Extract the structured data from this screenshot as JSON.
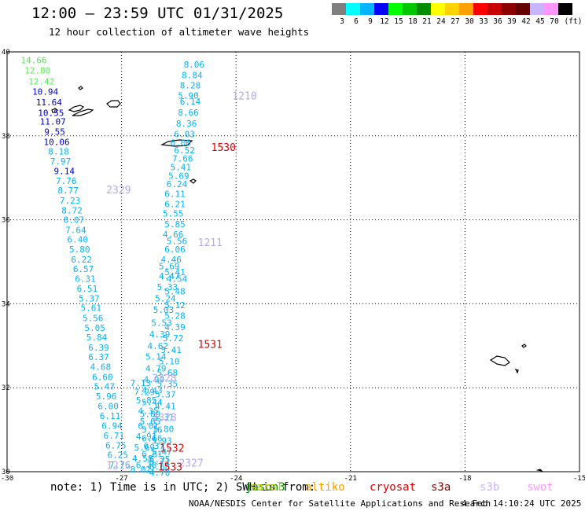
{
  "header": {
    "title": "12:00 – 23:59 UTC 01/31/2025",
    "subtitle": "12 hour collection of altimeter wave heights"
  },
  "colorbar": {
    "swatches": [
      {
        "color": "#7f7f7f",
        "label": "3"
      },
      {
        "color": "#00ffff",
        "label": "6"
      },
      {
        "color": "#00b4ff",
        "label": "9"
      },
      {
        "color": "#0000ff",
        "label": "12"
      },
      {
        "color": "#00ff00",
        "label": "15"
      },
      {
        "color": "#00c800",
        "label": "18"
      },
      {
        "color": "#008c00",
        "label": "21"
      },
      {
        "color": "#ffff00",
        "label": "24"
      },
      {
        "color": "#ffd200",
        "label": "27"
      },
      {
        "color": "#ffa000",
        "label": "30"
      },
      {
        "color": "#ff0000",
        "label": "33"
      },
      {
        "color": "#c80000",
        "label": "36"
      },
      {
        "color": "#8c0000",
        "label": "39"
      },
      {
        "color": "#640000",
        "label": "42"
      },
      {
        "color": "#c8b4ff",
        "label": "45"
      },
      {
        "color": "#ff96ff",
        "label": "70"
      },
      {
        "color": "#000000",
        "label": ""
      }
    ],
    "unit": "(ft)"
  },
  "axes": {
    "lat_labels": [
      "40",
      "38",
      "36",
      "34",
      "32",
      "30"
    ],
    "lon_labels": [
      "-30",
      "-27",
      "-24",
      "-21",
      "-18",
      "-15"
    ]
  },
  "map_data": {
    "lon_range": [
      -30,
      -15
    ],
    "lat_range": [
      30,
      40
    ],
    "swh_track_a": [
      {
        "lat": 39.8,
        "lon": -29.3,
        "v": "14.66",
        "c": "#55ee55"
      },
      {
        "lat": 39.56,
        "lon": -29.2,
        "v": "12.80",
        "c": "#55ee55"
      },
      {
        "lat": 39.3,
        "lon": -29.1,
        "v": "12.42",
        "c": "#55ee55"
      },
      {
        "lat": 39.05,
        "lon": -29.0,
        "v": "10.94",
        "c": "#0000cc"
      },
      {
        "lat": 38.8,
        "lon": -28.9,
        "v": "11.64",
        "c": "#0000cc"
      },
      {
        "lat": 38.55,
        "lon": -28.85,
        "v": "10.55",
        "c": "#0000cc"
      },
      {
        "lat": 38.34,
        "lon": -28.8,
        "v": "11.07",
        "c": "#0000cc"
      },
      {
        "lat": 38.1,
        "lon": -28.75,
        "v": "9.55",
        "c": "#0000cc"
      },
      {
        "lat": 37.86,
        "lon": -28.7,
        "v": "10.06",
        "c": "#0000cc"
      },
      {
        "lat": 37.63,
        "lon": -28.65,
        "v": "8.18",
        "c": "#00b4ff"
      },
      {
        "lat": 37.4,
        "lon": -28.6,
        "v": "7.97",
        "c": "#00b4ff"
      },
      {
        "lat": 37.16,
        "lon": -28.5,
        "v": "9.14",
        "c": "#0000cc"
      },
      {
        "lat": 36.93,
        "lon": -28.45,
        "v": "7.76",
        "c": "#00b4ff"
      },
      {
        "lat": 36.7,
        "lon": -28.4,
        "v": "8.77",
        "c": "#00b4ff"
      },
      {
        "lat": 36.46,
        "lon": -28.35,
        "v": "7.23",
        "c": "#00b4ff"
      },
      {
        "lat": 36.23,
        "lon": -28.3,
        "v": "8.72",
        "c": "#00b4ff"
      },
      {
        "lat": 36.0,
        "lon": -28.25,
        "v": "8.07",
        "c": "#00b4ff"
      },
      {
        "lat": 35.76,
        "lon": -28.2,
        "v": "7.64",
        "c": "#00b4ff"
      },
      {
        "lat": 35.53,
        "lon": -28.15,
        "v": "6.40",
        "c": "#00b4ff"
      },
      {
        "lat": 35.3,
        "lon": -28.1,
        "v": "5.80",
        "c": "#00b4ff"
      },
      {
        "lat": 35.06,
        "lon": -28.05,
        "v": "6.22",
        "c": "#00b4ff"
      },
      {
        "lat": 34.83,
        "lon": -28.0,
        "v": "6.57",
        "c": "#00b4ff"
      },
      {
        "lat": 34.6,
        "lon": -27.95,
        "v": "6.31",
        "c": "#00b4ff"
      },
      {
        "lat": 34.36,
        "lon": -27.9,
        "v": "6.51",
        "c": "#00b4ff"
      },
      {
        "lat": 34.13,
        "lon": -27.85,
        "v": "5.37",
        "c": "#00b4ff"
      },
      {
        "lat": 33.9,
        "lon": -27.8,
        "v": "5.61",
        "c": "#00b4ff"
      },
      {
        "lat": 33.66,
        "lon": -27.75,
        "v": "5.56",
        "c": "#00b4ff"
      },
      {
        "lat": 33.43,
        "lon": -27.7,
        "v": "5.05",
        "c": "#00b4ff"
      },
      {
        "lat": 33.2,
        "lon": -27.65,
        "v": "5.84",
        "c": "#00b4ff"
      },
      {
        "lat": 32.96,
        "lon": -27.6,
        "v": "6.39",
        "c": "#00b4ff"
      },
      {
        "lat": 32.73,
        "lon": -27.6,
        "v": "6.37",
        "c": "#00b4ff"
      },
      {
        "lat": 32.5,
        "lon": -27.55,
        "v": "4.68",
        "c": "#00b4ff"
      },
      {
        "lat": 32.26,
        "lon": -27.5,
        "v": "6.60",
        "c": "#00b4ff"
      },
      {
        "lat": 32.03,
        "lon": -27.45,
        "v": "5.47",
        "c": "#00b4ff"
      },
      {
        "lat": 31.8,
        "lon": -27.4,
        "v": "5.96",
        "c": "#00b4ff"
      },
      {
        "lat": 31.56,
        "lon": -27.35,
        "v": "6.00",
        "c": "#00b4ff"
      },
      {
        "lat": 31.33,
        "lon": -27.3,
        "v": "6.11",
        "c": "#00b4ff"
      },
      {
        "lat": 31.1,
        "lon": -27.25,
        "v": "6.94",
        "c": "#00b4ff"
      },
      {
        "lat": 30.86,
        "lon": -27.2,
        "v": "6.71",
        "c": "#00b4ff"
      },
      {
        "lat": 30.63,
        "lon": -27.15,
        "v": "6.75",
        "c": "#00b4ff"
      },
      {
        "lat": 30.4,
        "lon": -27.1,
        "v": "6.25",
        "c": "#00b4ff"
      },
      {
        "lat": 30.17,
        "lon": -27.05,
        "v": "7.76",
        "c": "#00b4ff"
      }
    ],
    "swh_track_b": [
      {
        "lat": 39.7,
        "lon": -25.1,
        "v": "8.06",
        "c": "#00b4ff"
      },
      {
        "lat": 39.45,
        "lon": -25.15,
        "v": "8.84",
        "c": "#00b4ff"
      },
      {
        "lat": 39.2,
        "lon": -25.2,
        "v": "8.28",
        "c": "#00b4ff"
      },
      {
        "lat": 38.96,
        "lon": -25.25,
        "v": "5.90",
        "c": "#00b4ff"
      },
      {
        "lat": 38.82,
        "lon": -25.2,
        "v": "6.14",
        "c": "#00b4ff"
      },
      {
        "lat": 38.56,
        "lon": -25.25,
        "v": "8.66",
        "c": "#00b4ff"
      },
      {
        "lat": 38.3,
        "lon": -25.3,
        "v": "8.36",
        "c": "#00b4ff"
      },
      {
        "lat": 38.04,
        "lon": -25.35,
        "v": "6.03",
        "c": "#00b4ff"
      },
      {
        "lat": 37.84,
        "lon": -25.45,
        "v": "6.06",
        "c": "#00b4ff"
      },
      {
        "lat": 37.66,
        "lon": -25.35,
        "v": "6.52",
        "c": "#00b4ff"
      },
      {
        "lat": 37.46,
        "lon": -25.4,
        "v": "7.66",
        "c": "#00b4ff"
      },
      {
        "lat": 37.26,
        "lon": -25.45,
        "v": "5.41",
        "c": "#00b4ff"
      },
      {
        "lat": 37.05,
        "lon": -25.5,
        "v": "5.69",
        "c": "#00b4ff"
      },
      {
        "lat": 36.85,
        "lon": -25.55,
        "v": "6.24",
        "c": "#00b4ff"
      },
      {
        "lat": 36.62,
        "lon": -25.6,
        "v": "6.11",
        "c": "#00b4ff"
      },
      {
        "lat": 36.38,
        "lon": -25.6,
        "v": "6.21",
        "c": "#00b4ff"
      },
      {
        "lat": 36.15,
        "lon": -25.65,
        "v": "5.55",
        "c": "#00b4ff"
      },
      {
        "lat": 35.9,
        "lon": -25.6,
        "v": "5.85",
        "c": "#00b4ff"
      },
      {
        "lat": 35.66,
        "lon": -25.65,
        "v": "4.66",
        "c": "#00b4ff"
      },
      {
        "lat": 35.5,
        "lon": -25.55,
        "v": "5.56",
        "c": "#00b4ff"
      },
      {
        "lat": 35.3,
        "lon": -25.6,
        "v": "6.06",
        "c": "#00b4ff"
      },
      {
        "lat": 35.06,
        "lon": -25.7,
        "v": "4.46",
        "c": "#00b4ff"
      },
      {
        "lat": 34.9,
        "lon": -25.75,
        "v": "5.69",
        "c": "#00b4ff"
      },
      {
        "lat": 34.76,
        "lon": -25.6,
        "v": "5.41",
        "c": "#00b4ff"
      },
      {
        "lat": 34.66,
        "lon": -25.75,
        "v": "4.47",
        "c": "#00b4ff"
      },
      {
        "lat": 34.6,
        "lon": -25.55,
        "v": "4.54",
        "c": "#00b4ff"
      },
      {
        "lat": 34.4,
        "lon": -25.8,
        "v": "5.33",
        "c": "#00b4ff"
      },
      {
        "lat": 34.3,
        "lon": -25.6,
        "v": "5.48",
        "c": "#00b4ff"
      },
      {
        "lat": 34.13,
        "lon": -25.85,
        "v": "5.24",
        "c": "#00b4ff"
      },
      {
        "lat": 33.97,
        "lon": -25.6,
        "v": "5.12",
        "c": "#00b4ff"
      },
      {
        "lat": 33.86,
        "lon": -25.9,
        "v": "5.03",
        "c": "#00b4ff"
      },
      {
        "lat": 33.72,
        "lon": -25.6,
        "v": "5.28",
        "c": "#00b4ff"
      },
      {
        "lat": 33.55,
        "lon": -25.95,
        "v": "5.53",
        "c": "#00b4ff"
      },
      {
        "lat": 33.45,
        "lon": -25.6,
        "v": "4.39",
        "c": "#00b4ff"
      },
      {
        "lat": 33.28,
        "lon": -26.0,
        "v": "4.39",
        "c": "#00b4ff"
      },
      {
        "lat": 33.18,
        "lon": -25.65,
        "v": "5.72",
        "c": "#00b4ff"
      },
      {
        "lat": 33.0,
        "lon": -26.05,
        "v": "4.62",
        "c": "#00b4ff"
      },
      {
        "lat": 32.9,
        "lon": -25.7,
        "v": "5.41",
        "c": "#00b4ff"
      },
      {
        "lat": 32.74,
        "lon": -26.1,
        "v": "5.14",
        "c": "#00b4ff"
      },
      {
        "lat": 32.63,
        "lon": -25.75,
        "v": "5.10",
        "c": "#00b4ff"
      },
      {
        "lat": 32.46,
        "lon": -26.1,
        "v": "4.79",
        "c": "#00b4ff"
      },
      {
        "lat": 32.36,
        "lon": -25.8,
        "v": "5.68",
        "c": "#00b4ff"
      },
      {
        "lat": 32.2,
        "lon": -26.15,
        "v": "4.99",
        "c": "#00b4ff"
      },
      {
        "lat": 32.1,
        "lon": -25.8,
        "v": "5.35",
        "c": "#00b4ff"
      },
      {
        "lat": 31.94,
        "lon": -26.2,
        "v": "4.43",
        "c": "#00b4ff"
      },
      {
        "lat": 31.84,
        "lon": -25.85,
        "v": "5.37",
        "c": "#00b4ff"
      },
      {
        "lat": 31.66,
        "lon": -26.2,
        "v": "5.44",
        "c": "#00b4ff"
      },
      {
        "lat": 31.56,
        "lon": -25.85,
        "v": "4.41",
        "c": "#00b4ff"
      },
      {
        "lat": 31.38,
        "lon": -26.25,
        "v": "5.89",
        "c": "#00b4ff"
      },
      {
        "lat": 31.3,
        "lon": -25.9,
        "v": "5.31",
        "c": "#00b4ff"
      },
      {
        "lat": 31.1,
        "lon": -26.3,
        "v": "6.01",
        "c": "#00b4ff"
      },
      {
        "lat": 31.02,
        "lon": -25.9,
        "v": "5.80",
        "c": "#00b4ff"
      },
      {
        "lat": 30.84,
        "lon": -26.35,
        "v": "4.91",
        "c": "#00b4ff"
      },
      {
        "lat": 30.74,
        "lon": -25.95,
        "v": "5.93",
        "c": "#00b4ff"
      },
      {
        "lat": 30.58,
        "lon": -26.4,
        "v": "5.69",
        "c": "#00b4ff"
      },
      {
        "lat": 30.48,
        "lon": -25.95,
        "v": "5.47",
        "c": "#00b4ff"
      },
      {
        "lat": 30.32,
        "lon": -26.45,
        "v": "4.58",
        "c": "#00b4ff"
      },
      {
        "lat": 30.24,
        "lon": -26.0,
        "v": "5.71",
        "c": "#00b4ff"
      },
      {
        "lat": 30.06,
        "lon": -26.5,
        "v": "8.02",
        "c": "#00b4ff"
      },
      {
        "lat": 29.98,
        "lon": -26.0,
        "v": "4.70",
        "c": "#00b4ff"
      }
    ],
    "swh_track_c": [
      {
        "lat": 32.12,
        "lon": -26.5,
        "v": "7.13",
        "c": "#00b4ff"
      },
      {
        "lat": 31.9,
        "lon": -26.4,
        "v": "7.29",
        "c": "#00b4ff"
      },
      {
        "lat": 31.7,
        "lon": -26.35,
        "v": "5.85",
        "c": "#00b4ff"
      },
      {
        "lat": 31.45,
        "lon": -26.3,
        "v": "4.35",
        "c": "#00b4ff"
      },
      {
        "lat": 31.2,
        "lon": -26.25,
        "v": "5.05",
        "c": "#00b4ff"
      },
      {
        "lat": 31.0,
        "lon": -26.2,
        "v": "5.16",
        "c": "#00b4ff"
      },
      {
        "lat": 30.8,
        "lon": -26.2,
        "v": "6.66",
        "c": "#00b4ff"
      },
      {
        "lat": 30.62,
        "lon": -26.15,
        "v": "6.37",
        "c": "#00b4ff"
      },
      {
        "lat": 30.42,
        "lon": -26.2,
        "v": "6.81",
        "c": "#00b4ff"
      },
      {
        "lat": 30.3,
        "lon": -26.0,
        "v": "6.25",
        "c": "#00b4ff"
      },
      {
        "lat": 30.16,
        "lon": -26.35,
        "v": "6.78",
        "c": "#00b4ff"
      },
      {
        "lat": 30.12,
        "lon": -26.0,
        "v": "6.68",
        "c": "#00b4ff"
      }
    ],
    "times": [
      {
        "lat": 38.94,
        "lon": -24.1,
        "v": "1210",
        "c": "#b8a8e8"
      },
      {
        "lat": 37.72,
        "lon": -24.65,
        "v": "1530",
        "c": "#dd0000"
      },
      {
        "lat": 36.7,
        "lon": -27.4,
        "v": "2329",
        "c": "#b8a8e8"
      },
      {
        "lat": 35.45,
        "lon": -25.0,
        "v": "1211",
        "c": "#b8a8e8"
      },
      {
        "lat": 33.02,
        "lon": -25.0,
        "v": "1531",
        "c": "#dd0000"
      },
      {
        "lat": 32.22,
        "lon": -26.2,
        "v": "2328",
        "c": "#b8a8e8"
      },
      {
        "lat": 31.28,
        "lon": -26.2,
        "v": "2328",
        "c": "#b8a8e8"
      },
      {
        "lat": 30.55,
        "lon": -26.0,
        "v": "1532",
        "c": "#dd0000"
      },
      {
        "lat": 30.2,
        "lon": -25.5,
        "v": "2327",
        "c": "#b8a8e8"
      },
      {
        "lat": 30.14,
        "lon": -27.4,
        "v": "1216",
        "c": "#b8a8e8"
      },
      {
        "lat": 30.1,
        "lon": -26.05,
        "v": "1533",
        "c": "#dd0000"
      }
    ]
  },
  "footer": {
    "note": "note: 1) Time is in UTC; 2) SWH is from:",
    "satellites": [
      {
        "name": "jason3",
        "color": "#008c00"
      },
      {
        "name": "saral",
        "color": "#c8c800"
      },
      {
        "name": "altiko",
        "color": "#ffa000"
      },
      {
        "name": "cryosat",
        "color": "#dd0000"
      },
      {
        "name": "s3a",
        "color": "#8c0000"
      },
      {
        "name": "s3b",
        "color": "#c8b4ff"
      },
      {
        "name": "swot",
        "color": "#ff96ff"
      }
    ],
    "credit": "NOAA/NESDIS Center for Satellite Applications and Research",
    "timestamp": "4 Feb 14:10:24 UTC 2025"
  }
}
